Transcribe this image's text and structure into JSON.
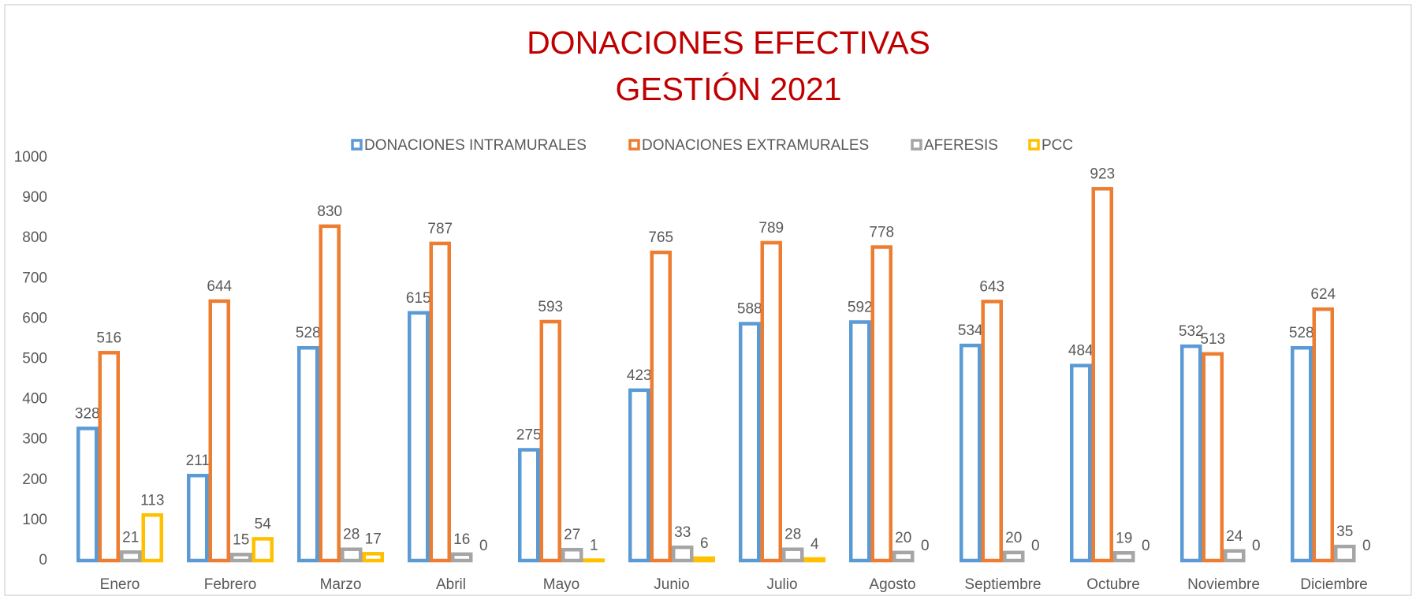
{
  "chart_data": {
    "type": "bar",
    "title": [
      "DONACIONES EFECTIVAS",
      "GESTIÓN 2021"
    ],
    "categories": [
      "Enero",
      "Febrero",
      "Marzo",
      "Abril",
      "Mayo",
      "Junio",
      "Julio",
      "Agosto",
      "Septiembre",
      "Octubre",
      "Noviembre",
      "Diciembre"
    ],
    "series": [
      {
        "name": "DONACIONES INTRAMURALES",
        "color": "#5b9bd5",
        "values": [
          328,
          211,
          528,
          615,
          275,
          423,
          588,
          592,
          534,
          484,
          532,
          528
        ]
      },
      {
        "name": "DONACIONES EXTRAMURALES",
        "color": "#ed7d31",
        "values": [
          516,
          644,
          830,
          787,
          593,
          765,
          789,
          778,
          643,
          923,
          513,
          624
        ]
      },
      {
        "name": "AFERESIS",
        "color": "#a5a5a5",
        "values": [
          21,
          15,
          28,
          16,
          27,
          33,
          28,
          20,
          20,
          19,
          24,
          35
        ]
      },
      {
        "name": "PCC",
        "color": "#ffc000",
        "values": [
          113,
          54,
          17,
          0,
          1,
          6,
          4,
          0,
          0,
          0,
          0,
          0
        ]
      }
    ],
    "ylim": [
      0,
      1000
    ],
    "yticks": [
      0,
      100,
      200,
      300,
      400,
      500,
      600,
      700,
      800,
      900,
      1000
    ],
    "grid": false,
    "legend": "top"
  }
}
